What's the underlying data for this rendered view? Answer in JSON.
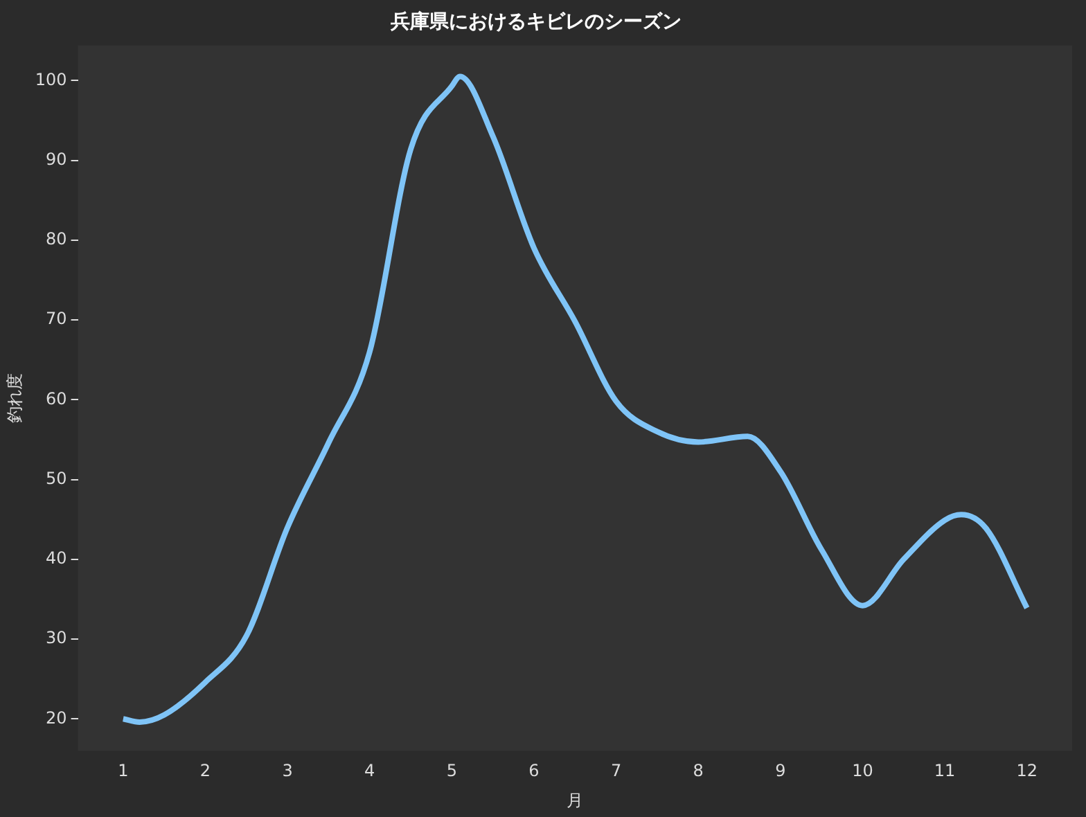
{
  "chart_data": {
    "type": "line",
    "title": "兵庫県におけるキビレのシーズン",
    "xlabel": "月",
    "ylabel": "釣れ度",
    "x": [
      1,
      1.2,
      1.5,
      2,
      2.5,
      3,
      3.5,
      4,
      4.5,
      5,
      5.1,
      5.5,
      6,
      6.5,
      7,
      7.5,
      8,
      8.6,
      9,
      9.5,
      10,
      10.5,
      11,
      11.2,
      11.5,
      12
    ],
    "series": [
      {
        "color": "#7fc4f7",
        "values": [
          20,
          19.6,
          20.5,
          24.6,
          30.4,
          44,
          54.6,
          66,
          91.4,
          99.3,
          100.5,
          93,
          79,
          69.8,
          59.8,
          56,
          54.7,
          55.4,
          51,
          41.2,
          34.2,
          40,
          44.9,
          45.6,
          43.9,
          33.9
        ]
      }
    ],
    "xlim": [
      0.45,
      12.55
    ],
    "ylim": [
      16,
      104.4
    ],
    "xticks": [
      1,
      2,
      3,
      4,
      5,
      6,
      7,
      8,
      9,
      10,
      11,
      12
    ],
    "yticks": [
      20,
      30,
      40,
      50,
      60,
      70,
      80,
      90,
      100
    ],
    "grid": false,
    "legend": false,
    "marker": "none",
    "line_style": "solid"
  }
}
